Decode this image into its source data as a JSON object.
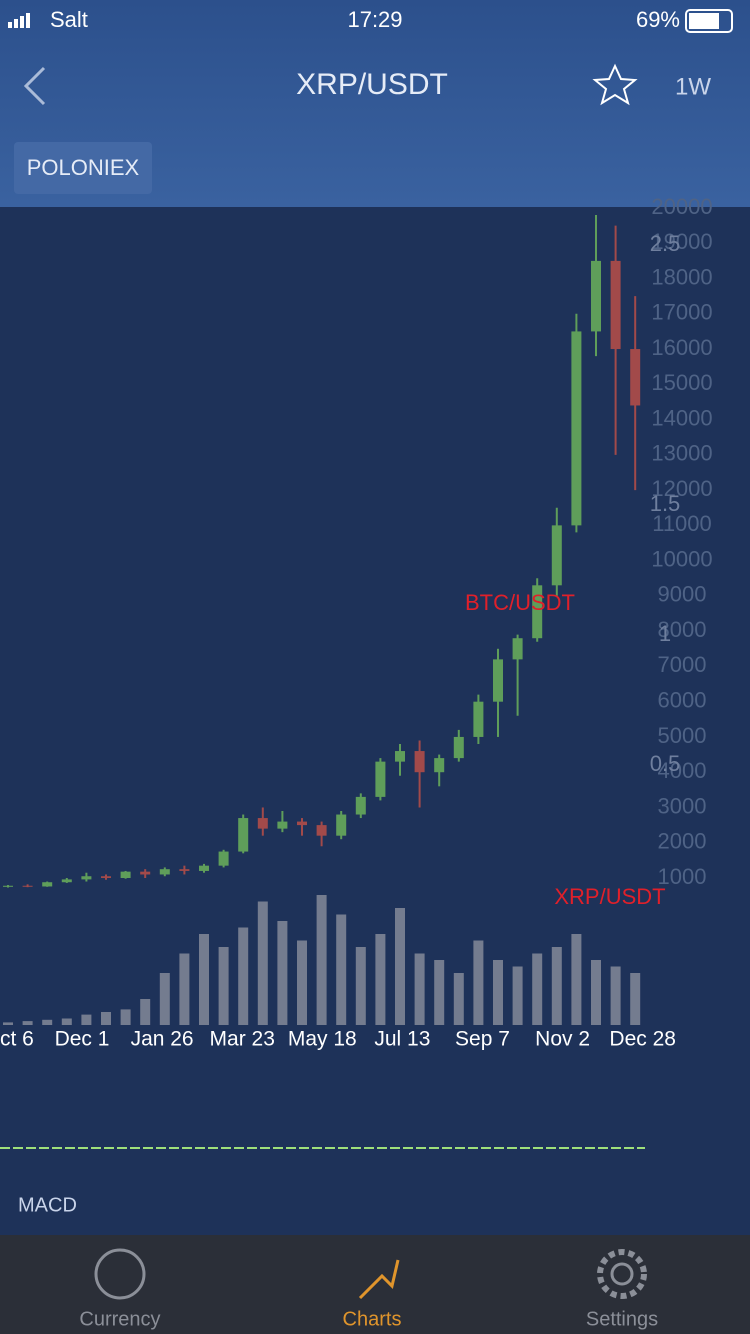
{
  "status_bar": {
    "carrier": "Salt",
    "time": "17:29",
    "battery": "69%"
  },
  "nav": {
    "title": "XRP/USDT",
    "interval": "1W"
  },
  "exchange": "POLONIEX",
  "chart_data": {
    "type": "candlestick",
    "annotations": [
      "BTC/USDT",
      "XRP/USDT"
    ],
    "x_labels": [
      "ct 6",
      "Dec 1",
      "Jan 26",
      "Mar 23",
      "May 18",
      "Jul 13",
      "Sep 7",
      "Nov 2",
      "Dec 28"
    ],
    "ylim": [
      1000,
      20000
    ],
    "yticks": [
      1000,
      2000,
      3000,
      4000,
      5000,
      6000,
      7000,
      8000,
      9000,
      10000,
      11000,
      12000,
      13000,
      14000,
      15000,
      16000,
      17000,
      18000,
      19000,
      20000
    ],
    "y2lim": [
      0,
      2.5
    ],
    "y2ticks": [
      0.5,
      1,
      1.5,
      2.5
    ],
    "up_color": "#5f9e5a",
    "down_color": "#a24a4a",
    "volume_color": "#8a8f9c",
    "candles": [
      [
        750,
        800,
        730,
        780
      ],
      [
        780,
        820,
        740,
        760
      ],
      [
        760,
        900,
        750,
        880
      ],
      [
        880,
        1000,
        860,
        960
      ],
      [
        960,
        1150,
        900,
        1050
      ],
      [
        1050,
        1100,
        950,
        1000
      ],
      [
        1000,
        1200,
        980,
        1180
      ],
      [
        1180,
        1250,
        1000,
        1100
      ],
      [
        1100,
        1300,
        1050,
        1250
      ],
      [
        1250,
        1350,
        1100,
        1200
      ],
      [
        1200,
        1400,
        1150,
        1350
      ],
      [
        1350,
        1800,
        1300,
        1750
      ],
      [
        1750,
        2800,
        1700,
        2700
      ],
      [
        2700,
        3000,
        2200,
        2400
      ],
      [
        2400,
        2900,
        2300,
        2600
      ],
      [
        2600,
        2700,
        2200,
        2500
      ],
      [
        2500,
        2600,
        1900,
        2200
      ],
      [
        2200,
        2900,
        2100,
        2800
      ],
      [
        2800,
        3400,
        2700,
        3300
      ],
      [
        3300,
        4400,
        3200,
        4300
      ],
      [
        4300,
        4800,
        3900,
        4600
      ],
      [
        4600,
        4900,
        3000,
        4000
      ],
      [
        4000,
        4500,
        3600,
        4400
      ],
      [
        4400,
        5200,
        4300,
        5000
      ],
      [
        5000,
        6200,
        4800,
        6000
      ],
      [
        6000,
        7500,
        5000,
        7200
      ],
      [
        7200,
        7900,
        5600,
        7800
      ],
      [
        7800,
        9500,
        7700,
        9300
      ],
      [
        9300,
        11500,
        9000,
        11000
      ],
      [
        11000,
        17000,
        10800,
        16500
      ],
      [
        16500,
        19800,
        15800,
        18500
      ],
      [
        18500,
        19500,
        13000,
        16000
      ],
      [
        16000,
        17500,
        12000,
        14400
      ]
    ],
    "volume": [
      2,
      3,
      4,
      5,
      8,
      10,
      12,
      20,
      40,
      55,
      70,
      60,
      75,
      95,
      80,
      65,
      100,
      85,
      60,
      70,
      90,
      55,
      50,
      40,
      65,
      50,
      45,
      55,
      60,
      70,
      50,
      45,
      40
    ],
    "macd_label": "MACD"
  },
  "tabs": [
    "Currency",
    "Charts",
    "Settings"
  ]
}
